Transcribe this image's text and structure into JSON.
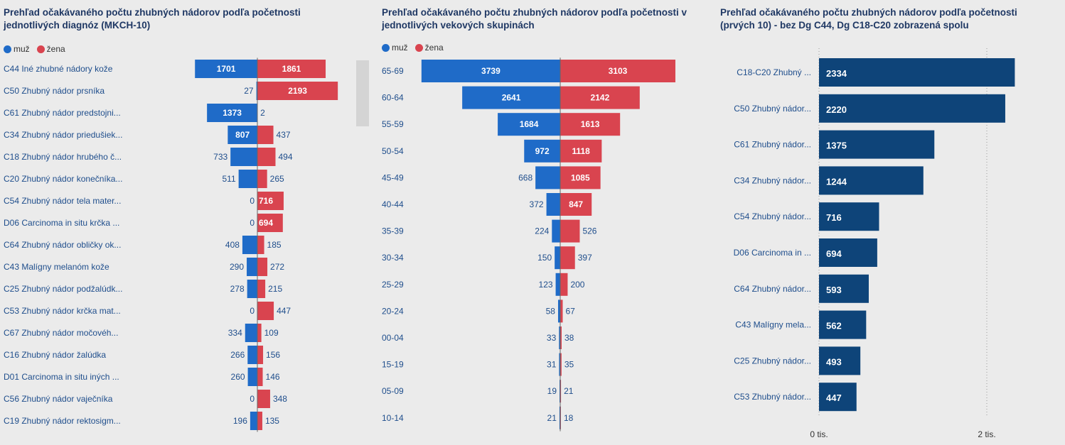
{
  "colors": {
    "male": "#1f6bc8",
    "female": "#d9444f",
    "bar3": "#0e4479",
    "label": "#1f4e8c",
    "axis": "#333333"
  },
  "legend": {
    "male": "muž",
    "female": "žena"
  },
  "chart_data": [
    {
      "type": "bar",
      "orientation": "butterfly",
      "title": "Prehľad očakávaného počtu zhubných nádorov podľa početnosti jednotlivých diagnóz (MKCH-10)",
      "categories": [
        "C44 Iné zhubné nádory kože",
        "C50 Zhubný nádor prsníka",
        "C61 Zhubný nádor predstojni...",
        "C34 Zhubný nádor priedušiek...",
        "C18 Zhubný nádor hrubého č...",
        "C20 Zhubný nádor konečníka...",
        "C54 Zhubný nádor tela mater...",
        "D06 Carcinoma in situ krčka ...",
        "C64 Zhubný nádor obličky ok...",
        "C43 Malígny melanóm kože",
        "C25 Zhubný nádor podžalúdk...",
        "C53 Zhubný nádor krčka mat...",
        "C67 Zhubný nádor močovéh...",
        "C16 Zhubný nádor žalúdka",
        "D01 Carcinoma in situ iných ...",
        "C56 Zhubný nádor vaječníka",
        "C19 Zhubný nádor rektosigm..."
      ],
      "series": [
        {
          "name": "muž",
          "values": [
            1701,
            27,
            1373,
            807,
            733,
            511,
            0,
            0,
            408,
            290,
            278,
            0,
            334,
            266,
            260,
            0,
            196
          ]
        },
        {
          "name": "žena",
          "values": [
            1861,
            2193,
            2,
            437,
            494,
            265,
            716,
            694,
            185,
            272,
            215,
            447,
            109,
            156,
            146,
            348,
            135
          ]
        }
      ],
      "legend": "top-left",
      "grid": false
    },
    {
      "type": "bar",
      "orientation": "butterfly",
      "title": "Prehľad očakávaného počtu zhubných nádorov podľa početnosti v jednotlivých vekových skupinách",
      "categories": [
        "65-69",
        "60-64",
        "55-59",
        "50-54",
        "45-49",
        "40-44",
        "35-39",
        "30-34",
        "25-29",
        "20-24",
        "00-04",
        "15-19",
        "05-09",
        "10-14"
      ],
      "series": [
        {
          "name": "muž",
          "values": [
            3739,
            2641,
            1684,
            972,
            668,
            372,
            224,
            150,
            123,
            58,
            33,
            31,
            19,
            21
          ]
        },
        {
          "name": "žena",
          "values": [
            3103,
            2142,
            1613,
            1118,
            1085,
            847,
            526,
            397,
            200,
            67,
            38,
            35,
            21,
            18
          ]
        }
      ],
      "legend": "top-left",
      "grid": false
    },
    {
      "type": "bar",
      "orientation": "horizontal",
      "title": "Prehľad očakávaného počtu zhubných nádorov podľa početnosti (prvých 10) - bez Dg C44, Dg C18-C20 zobrazená spolu",
      "categories": [
        "C18-C20 Zhubný ...",
        "C50 Zhubný nádor...",
        "C61 Zhubný nádor...",
        "C34 Zhubný nádor...",
        "C54 Zhubný nádor...",
        "D06 Carcinoma in ...",
        "C64 Zhubný nádor...",
        "C43 Malígny mela...",
        "C25 Zhubný nádor...",
        "C53 Zhubný nádor..."
      ],
      "values": [
        2334,
        2220,
        1375,
        1244,
        716,
        694,
        593,
        562,
        493,
        447
      ],
      "xticks": [
        "0 tis.",
        "2 tis."
      ],
      "xlim": [
        0,
        2500
      ],
      "grid": true
    }
  ]
}
